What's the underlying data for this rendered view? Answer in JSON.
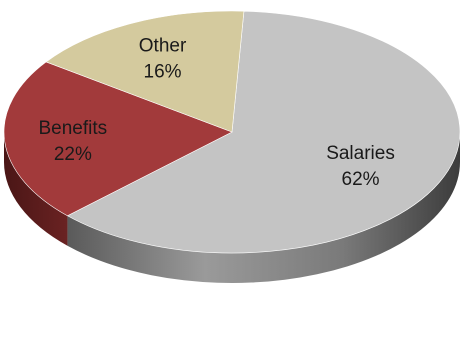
{
  "chart_data": {
    "type": "pie",
    "style": "3d",
    "categories": [
      "Salaries",
      "Benefits",
      "Other"
    ],
    "values": [
      62,
      22,
      16
    ],
    "labels": [
      {
        "name": "Salaries",
        "value": "62%"
      },
      {
        "name": "Benefits",
        "value": "22%"
      },
      {
        "name": "Other",
        "value": "16%"
      }
    ],
    "colors": {
      "Salaries": "#c4c4c4",
      "Benefits": "#a23a3b",
      "Other": "#d4ca9e"
    },
    "title": "",
    "legend": "none"
  }
}
